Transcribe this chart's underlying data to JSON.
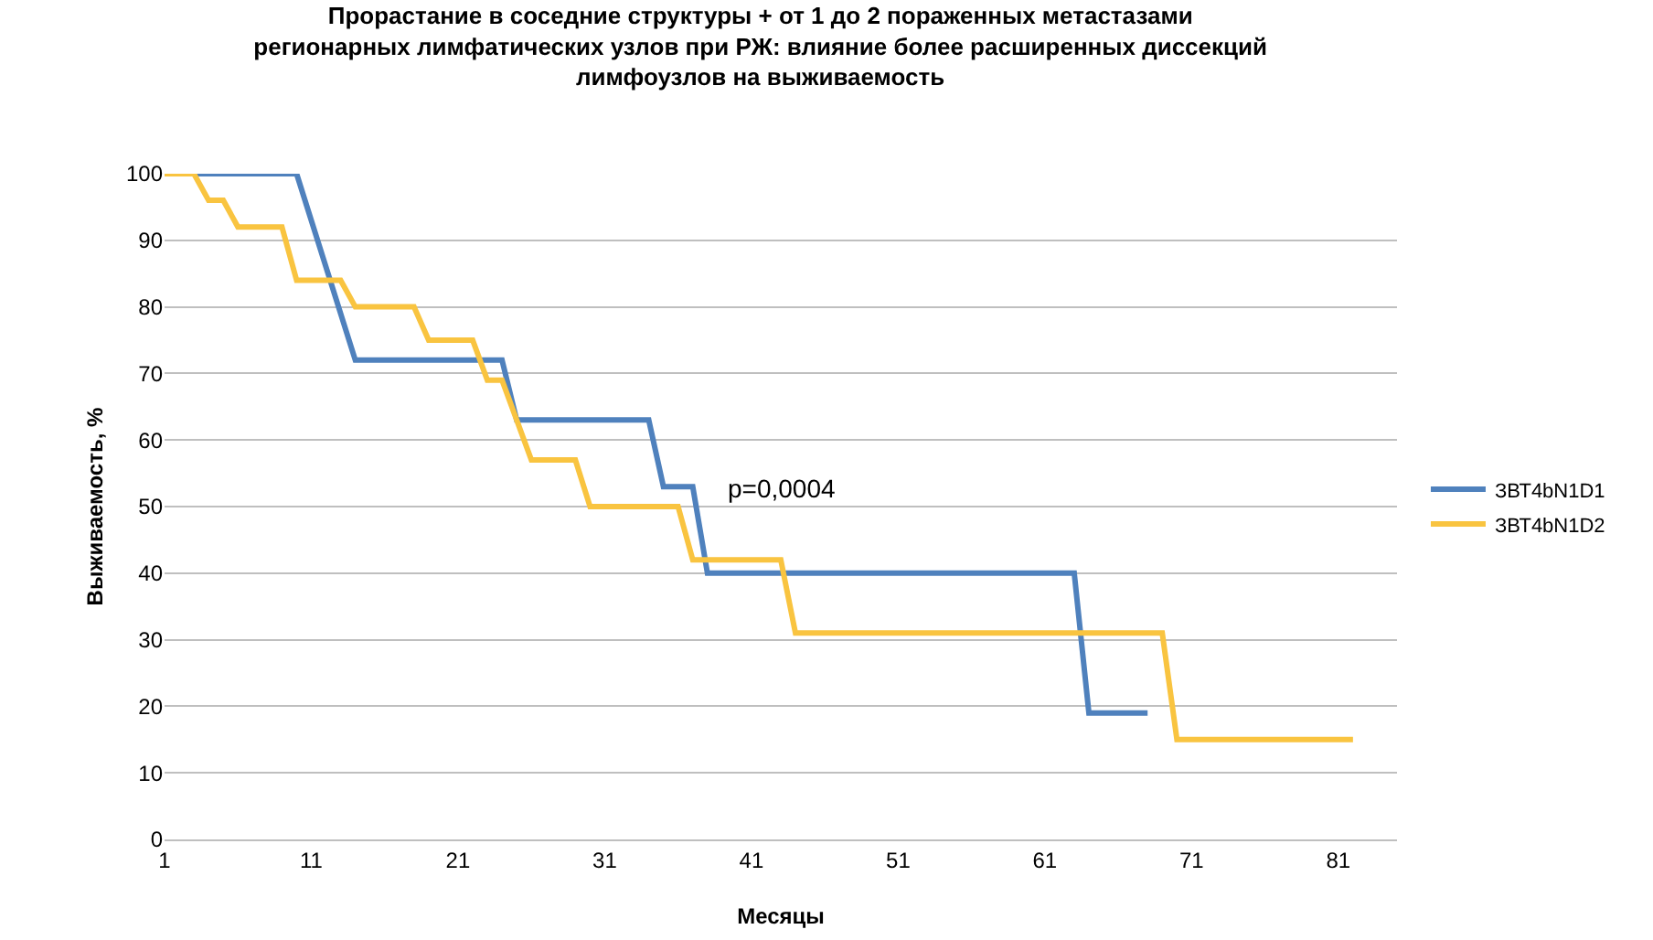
{
  "chart_data": {
    "type": "line",
    "title": "Прорастание в соседние структуры + от 1 до 2 пораженных метастазами регионарных лимфатических узлов при РЖ: влияние более расширенных диссекций лимфоузлов на выживаемость",
    "xlabel": "Месяцы",
    "ylabel": "Выживаемость, %",
    "xlim": [
      1,
      85
    ],
    "xticks": [
      1,
      11,
      21,
      31,
      41,
      51,
      61,
      71,
      81
    ],
    "ylim": [
      0,
      100
    ],
    "yticks": [
      0,
      10,
      20,
      30,
      40,
      50,
      60,
      70,
      80,
      90,
      100
    ],
    "grid": "y",
    "legend": "right",
    "marker": "none",
    "line_style": "solid",
    "annotations": [
      "p=0,0004"
    ],
    "series": [
      {
        "name": "ЗВТ4bN1D1",
        "color": "#4f81bd",
        "x": [
          1,
          10,
          14,
          24,
          25,
          34,
          35,
          37,
          38,
          63,
          64,
          68
        ],
        "values": [
          100,
          100,
          72,
          72,
          63,
          63,
          53,
          53,
          40,
          40,
          19,
          19
        ]
      },
      {
        "name": "ЗВТ4bN1D2",
        "color": "#f9c440",
        "x": [
          1,
          3,
          4,
          5,
          6,
          9,
          10,
          13,
          14,
          18,
          19,
          22,
          23,
          24,
          26,
          29,
          30,
          36,
          37,
          43,
          44,
          69,
          70,
          82
        ],
        "values": [
          100,
          100,
          96,
          96,
          92,
          92,
          84,
          84,
          80,
          80,
          75,
          75,
          69,
          69,
          57,
          57,
          50,
          50,
          42,
          42,
          31,
          31,
          15,
          15
        ]
      }
    ]
  }
}
